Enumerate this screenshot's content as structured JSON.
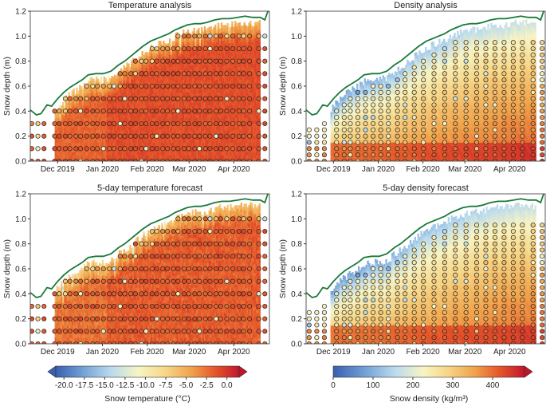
{
  "chart_data": [
    {
      "type": "heatmap",
      "variable": "temperature",
      "title": "Temperature analysis",
      "ylabel": "Snow depth (m)",
      "ylim": [
        0,
        1.2
      ],
      "yticks": [
        "0.0",
        "0.2",
        "0.4",
        "0.6",
        "0.8",
        "1.0",
        "1.2"
      ],
      "xticks": [
        "Dec 2019",
        "Jan 2020",
        "Feb 2020",
        "Mar 2020",
        "Apr 2020"
      ],
      "xrange": [
        "2019-11-15",
        "2020-04-20"
      ],
      "snow_depth_line": {
        "dates": [
          "2019-11-15",
          "2019-11-19",
          "2019-11-22",
          "2019-11-26",
          "2019-11-29",
          "2019-12-03",
          "2019-12-07",
          "2019-12-11",
          "2019-12-15",
          "2019-12-19",
          "2019-12-23",
          "2019-12-28",
          "2020-01-02",
          "2020-01-07",
          "2020-01-12",
          "2020-01-16",
          "2020-01-20",
          "2020-01-24",
          "2020-01-28",
          "2020-02-02",
          "2020-02-06",
          "2020-02-10",
          "2020-02-14",
          "2020-02-18",
          "2020-02-22",
          "2020-02-26",
          "2020-03-02",
          "2020-03-06",
          "2020-03-10",
          "2020-03-15",
          "2020-03-20",
          "2020-03-25",
          "2020-03-30",
          "2020-04-04",
          "2020-04-09",
          "2020-04-14",
          "2020-04-17",
          "2020-04-19"
        ],
        "depth": [
          0.41,
          0.37,
          0.38,
          0.45,
          0.44,
          0.5,
          0.55,
          0.59,
          0.62,
          0.65,
          0.69,
          0.7,
          0.7,
          0.72,
          0.77,
          0.8,
          0.84,
          0.88,
          0.92,
          0.96,
          0.98,
          1.0,
          1.02,
          1.05,
          1.07,
          1.09,
          1.1,
          1.1,
          1.11,
          1.13,
          1.14,
          1.14,
          1.15,
          1.16,
          1.15,
          1.15,
          1.13,
          1.2
        ]
      }
    },
    {
      "type": "heatmap",
      "variable": "density",
      "title": "Density analysis",
      "ylabel": "Snow depth (m)",
      "ylim": [
        0,
        1.2
      ],
      "yticks": [
        "0.0",
        "0.2",
        "0.4",
        "0.6",
        "0.8",
        "1.0",
        "1.2"
      ],
      "xticks": [
        "Dec 2019",
        "Jan 2020",
        "Feb 2020",
        "Mar 2020",
        "Apr 2020"
      ],
      "xrange": [
        "2019-11-15",
        "2020-04-20"
      ],
      "snow_depth_line": {
        "dates": [
          "2019-11-15",
          "2019-11-19",
          "2019-11-22",
          "2019-11-26",
          "2019-11-29",
          "2019-12-03",
          "2019-12-07",
          "2019-12-11",
          "2019-12-15",
          "2019-12-19",
          "2019-12-23",
          "2019-12-28",
          "2020-01-02",
          "2020-01-07",
          "2020-01-12",
          "2020-01-16",
          "2020-01-20",
          "2020-01-24",
          "2020-01-28",
          "2020-02-02",
          "2020-02-06",
          "2020-02-10",
          "2020-02-14",
          "2020-02-18",
          "2020-02-22",
          "2020-02-26",
          "2020-03-02",
          "2020-03-06",
          "2020-03-10",
          "2020-03-15",
          "2020-03-20",
          "2020-03-25",
          "2020-03-30",
          "2020-04-04",
          "2020-04-09",
          "2020-04-14",
          "2020-04-17",
          "2020-04-19"
        ],
        "depth": [
          0.41,
          0.37,
          0.38,
          0.45,
          0.44,
          0.5,
          0.55,
          0.59,
          0.62,
          0.65,
          0.69,
          0.7,
          0.7,
          0.72,
          0.77,
          0.8,
          0.84,
          0.88,
          0.92,
          0.96,
          0.98,
          1.0,
          1.02,
          1.05,
          1.07,
          1.09,
          1.1,
          1.1,
          1.11,
          1.13,
          1.14,
          1.14,
          1.15,
          1.16,
          1.15,
          1.15,
          1.13,
          1.2
        ]
      }
    },
    {
      "type": "heatmap",
      "variable": "temperature",
      "title": "5-day temperature forecast",
      "ylabel": "Snow depth (m)",
      "ylim": [
        0,
        1.2
      ],
      "yticks": [
        "0.0",
        "0.2",
        "0.4",
        "0.6",
        "0.8",
        "1.0",
        "1.2"
      ],
      "xticks": [
        "Dec 2019",
        "Jan 2020",
        "Feb 2020",
        "Mar 2020",
        "Apr 2020"
      ],
      "xrange": [
        "2019-11-15",
        "2020-04-20"
      ],
      "snow_depth_line": {
        "dates": [
          "2019-11-15",
          "2019-11-19",
          "2019-11-22",
          "2019-11-26",
          "2019-11-29",
          "2019-12-03",
          "2019-12-07",
          "2019-12-11",
          "2019-12-15",
          "2019-12-19",
          "2019-12-23",
          "2019-12-28",
          "2020-01-02",
          "2020-01-07",
          "2020-01-12",
          "2020-01-16",
          "2020-01-20",
          "2020-01-24",
          "2020-01-28",
          "2020-02-02",
          "2020-02-06",
          "2020-02-10",
          "2020-02-14",
          "2020-02-18",
          "2020-02-22",
          "2020-02-26",
          "2020-03-02",
          "2020-03-06",
          "2020-03-10",
          "2020-03-15",
          "2020-03-20",
          "2020-03-25",
          "2020-03-30",
          "2020-04-04",
          "2020-04-09",
          "2020-04-14",
          "2020-04-17",
          "2020-04-19"
        ],
        "depth": [
          0.41,
          0.37,
          0.38,
          0.45,
          0.44,
          0.5,
          0.55,
          0.59,
          0.62,
          0.65,
          0.69,
          0.7,
          0.7,
          0.72,
          0.77,
          0.8,
          0.84,
          0.88,
          0.92,
          0.96,
          0.98,
          1.0,
          1.02,
          1.05,
          1.07,
          1.09,
          1.1,
          1.1,
          1.11,
          1.13,
          1.14,
          1.14,
          1.15,
          1.16,
          1.15,
          1.15,
          1.13,
          1.2
        ]
      }
    },
    {
      "type": "heatmap",
      "variable": "density",
      "title": "5-day density forecast",
      "ylabel": "Snow depth (m)",
      "ylim": [
        0,
        1.2
      ],
      "yticks": [
        "0.0",
        "0.2",
        "0.4",
        "0.6",
        "0.8",
        "1.0",
        "1.2"
      ],
      "xticks": [
        "Dec 2019",
        "Jan 2020",
        "Feb 2020",
        "Mar 2020",
        "Apr 2020"
      ],
      "xrange": [
        "2019-11-15",
        "2020-04-20"
      ],
      "snow_depth_line": {
        "dates": [
          "2019-11-15",
          "2019-11-19",
          "2019-11-22",
          "2019-11-26",
          "2019-11-29",
          "2019-12-03",
          "2019-12-07",
          "2019-12-11",
          "2019-12-15",
          "2019-12-19",
          "2019-12-23",
          "2019-12-28",
          "2020-01-02",
          "2020-01-07",
          "2020-01-12",
          "2020-01-16",
          "2020-01-20",
          "2020-01-24",
          "2020-01-28",
          "2020-02-02",
          "2020-02-06",
          "2020-02-10",
          "2020-02-14",
          "2020-02-18",
          "2020-02-22",
          "2020-02-26",
          "2020-03-02",
          "2020-03-06",
          "2020-03-10",
          "2020-03-15",
          "2020-03-20",
          "2020-03-25",
          "2020-03-30",
          "2020-04-04",
          "2020-04-09",
          "2020-04-14",
          "2020-04-17",
          "2020-04-19"
        ],
        "depth": [
          0.41,
          0.37,
          0.38,
          0.45,
          0.44,
          0.5,
          0.55,
          0.59,
          0.62,
          0.65,
          0.69,
          0.7,
          0.7,
          0.72,
          0.77,
          0.8,
          0.84,
          0.88,
          0.92,
          0.96,
          0.98,
          1.0,
          1.02,
          1.05,
          1.07,
          1.09,
          1.1,
          1.1,
          1.11,
          1.13,
          1.14,
          1.14,
          1.15,
          1.16,
          1.15,
          1.15,
          1.13,
          1.2
        ]
      }
    }
  ],
  "colorbars": {
    "temperature": {
      "label": "Snow temperature (°C)",
      "range": [
        -21,
        1.5
      ],
      "ticks": [
        -20,
        -17.5,
        -15,
        -12.5,
        -10,
        -7.5,
        -5,
        -2.5,
        0
      ],
      "tick_labels": [
        "-20.0",
        "-17.5",
        "-15.0",
        "-12.5",
        "-10.0",
        "-7.5",
        "-5.0",
        "-2.5",
        "0.0"
      ],
      "extend": "both"
    },
    "density": {
      "label": "Snow density (kg/m³)",
      "range": [
        0,
        480
      ],
      "ticks": [
        0,
        100,
        200,
        300,
        400
      ],
      "tick_labels": [
        "0",
        "100",
        "200",
        "300",
        "400"
      ],
      "extend": "max"
    }
  },
  "colors": {
    "depth_line": "#1a7a3a",
    "colormap": [
      "#3a5fb0",
      "#6f9ed3",
      "#b9daee",
      "#f7f4c4",
      "#f6d687",
      "#f0a24a",
      "#e5562a",
      "#c2152c"
    ],
    "marker_edge": "#222222"
  }
}
